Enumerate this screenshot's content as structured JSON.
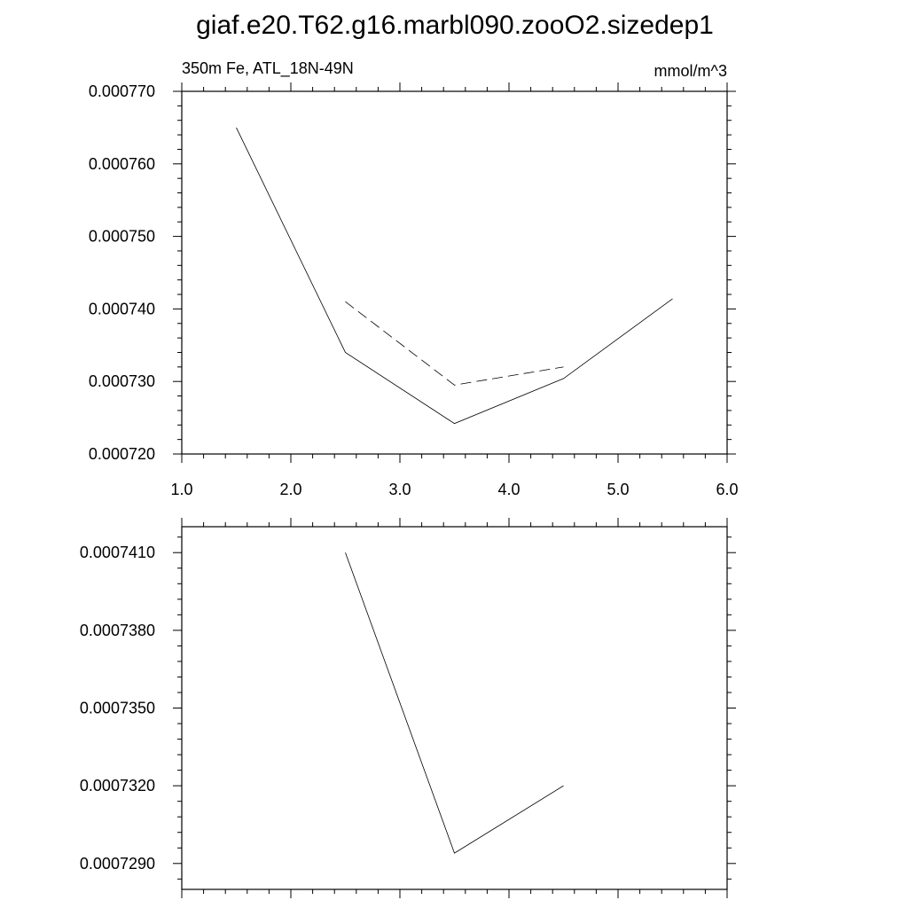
{
  "figure": {
    "title": "giaf.e20.T62.g16.marbl090.zooO2.sizedep1"
  },
  "chart_data": [
    {
      "type": "line",
      "left_label": "350m Fe, ATL_18N-49N",
      "right_label": "mmol/m^3",
      "xlim": [
        1.0,
        6.0
      ],
      "ylim": [
        0.00072,
        0.00077
      ],
      "x_major_ticks": [
        1.0,
        2.0,
        3.0,
        4.0,
        5.0,
        6.0
      ],
      "x_tick_labels": [
        "1.0",
        "2.0",
        "3.0",
        "4.0",
        "5.0",
        "6.0"
      ],
      "y_major_ticks": [
        0.00072,
        0.00073,
        0.00074,
        0.00075,
        0.00076,
        0.00077
      ],
      "y_tick_labels": [
        "0.000720",
        "0.000730",
        "0.000740",
        "0.000750",
        "0.000760",
        "0.000770"
      ],
      "series": [
        {
          "style": "solid",
          "x": [
            1.5,
            2.5,
            3.5,
            4.5,
            5.5
          ],
          "values": [
            0.000765,
            0.000734,
            0.0007242,
            0.0007304,
            0.0007414
          ]
        },
        {
          "style": "dashed",
          "x": [
            2.5,
            3.5,
            4.5
          ],
          "values": [
            0.000741,
            0.0007295,
            0.000732
          ]
        }
      ]
    },
    {
      "type": "line",
      "xlim": [
        1.0,
        6.0
      ],
      "ylim": [
        0.000728,
        0.000742
      ],
      "x_major_ticks": [
        1.0,
        2.0,
        3.0,
        4.0,
        5.0,
        6.0
      ],
      "y_major_ticks": [
        0.000729,
        0.000732,
        0.000735,
        0.000738,
        0.000741
      ],
      "y_tick_labels": [
        "0.0007290",
        "0.0007320",
        "0.0007350",
        "0.0007380",
        "0.0007410"
      ],
      "series": [
        {
          "style": "solid",
          "x": [
            2.5,
            3.5,
            4.5
          ],
          "values": [
            0.000741,
            0.0007294,
            0.000732
          ]
        }
      ]
    }
  ]
}
